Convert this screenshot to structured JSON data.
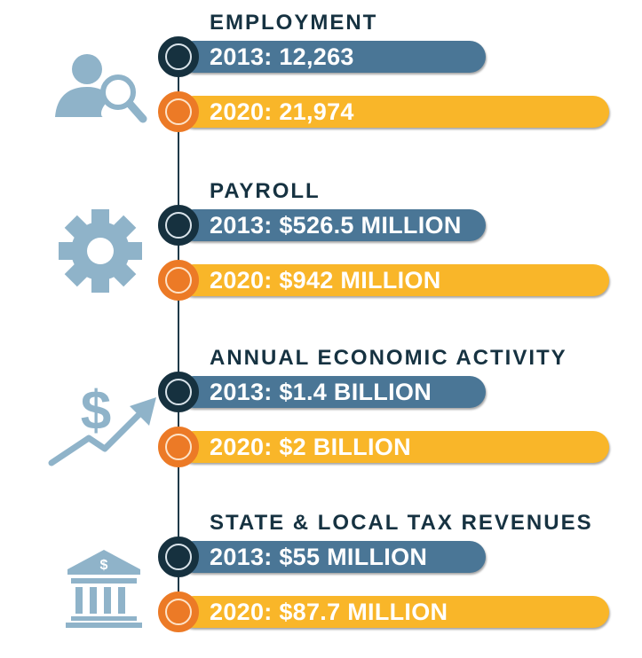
{
  "colors": {
    "bar_2013": "#4a7696",
    "bar_2020": "#f9b629",
    "circle_2013": "#16313f",
    "circle_2020": "#ec7a26",
    "heading": "#163241",
    "icon": "#8fb3c9",
    "timeline_line": "#1f3a49"
  },
  "chart_data": {
    "type": "bar",
    "categories": [
      "2013",
      "2020"
    ],
    "sections": [
      {
        "title": "EMPLOYMENT",
        "icon": "person-search-icon",
        "values": [
          12263,
          21974
        ],
        "labels": [
          "2013: 12,263",
          "2020: 21,974"
        ]
      },
      {
        "title": "PAYROLL",
        "icon": "gear-icon",
        "values": [
          526.5,
          942
        ],
        "unit": "MILLION",
        "labels": [
          "2013: $526.5 MILLION",
          "2020: $942 MILLION"
        ]
      },
      {
        "title": "ANNUAL ECONOMIC ACTIVITY",
        "icon": "dollar-growth-arrow-icon",
        "values": [
          1.4,
          2
        ],
        "unit": "BILLION",
        "labels": [
          "2013: $1.4 BILLION",
          "2020: $2 BILLION"
        ]
      },
      {
        "title": "STATE & LOCAL TAX REVENUES",
        "icon": "bank-building-icon",
        "values": [
          55,
          87.7
        ],
        "unit": "MILLION",
        "labels": [
          "2013: $55 MILLION",
          "2020: $87.7 MILLION"
        ]
      }
    ]
  }
}
